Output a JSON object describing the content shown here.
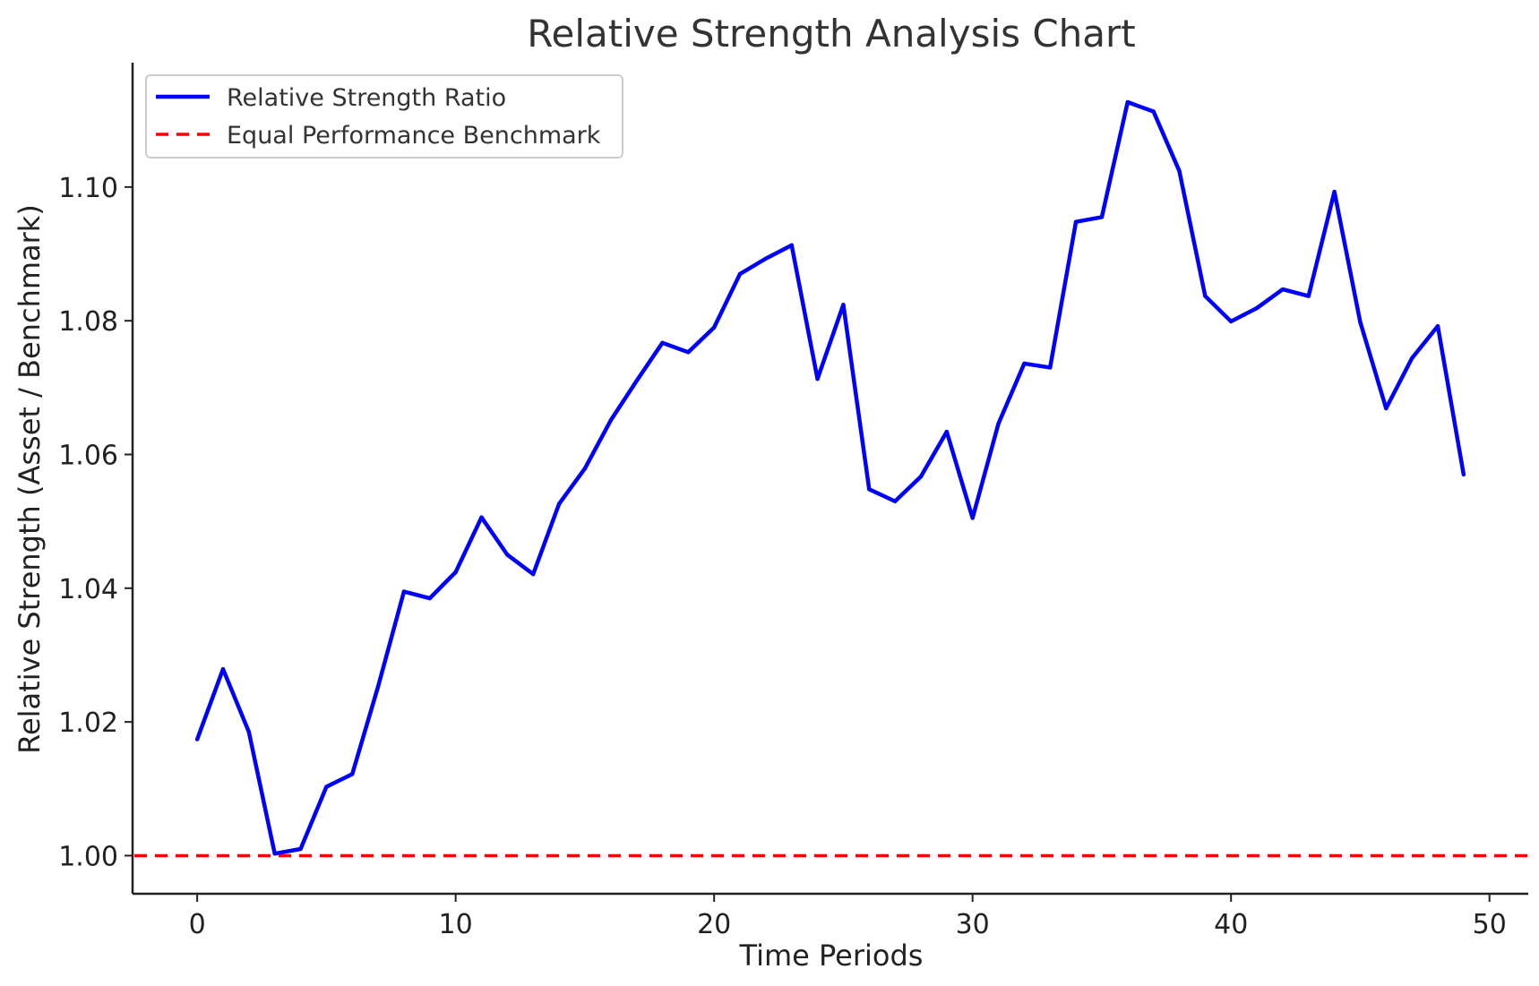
{
  "chart_data": {
    "type": "line",
    "title": "Relative Strength Analysis Chart",
    "xlabel": "Time Periods",
    "ylabel": "Relative Strength (Asset / Benchmark)",
    "xlim": [
      -2.5,
      51.5
    ],
    "ylim": [
      0.9943,
      1.1186
    ],
    "x_ticks": [
      0,
      10,
      20,
      30,
      40,
      50
    ],
    "x_tick_labels": [
      "0",
      "10",
      "20",
      "30",
      "40",
      "50"
    ],
    "y_ticks": [
      1.0,
      1.02,
      1.04,
      1.06,
      1.08,
      1.1
    ],
    "y_tick_labels": [
      "1.00",
      "1.02",
      "1.04",
      "1.06",
      "1.08",
      "1.10"
    ],
    "grid": false,
    "legend_position": "top-left",
    "series": [
      {
        "name": "Relative Strength Ratio",
        "color": "#0000ff",
        "style": "solid",
        "x": [
          0,
          1,
          2,
          3,
          4,
          5,
          6,
          7,
          8,
          9,
          10,
          11,
          12,
          13,
          14,
          15,
          16,
          17,
          18,
          19,
          20,
          21,
          22,
          23,
          24,
          25,
          26,
          27,
          28,
          29,
          30,
          31,
          32,
          33,
          34,
          35,
          36,
          37,
          38,
          39,
          40,
          41,
          42,
          43,
          44,
          45,
          46,
          47,
          48,
          49
        ],
        "values": [
          1.0174,
          1.0279,
          1.0185,
          1.0003,
          1.001,
          1.0103,
          1.0122,
          1.0253,
          1.0395,
          1.0385,
          1.0424,
          1.0506,
          1.045,
          1.0421,
          1.0526,
          1.0579,
          1.0651,
          1.071,
          1.0767,
          1.0753,
          1.079,
          1.087,
          1.0893,
          1.0913,
          1.0713,
          1.0824,
          1.0548,
          1.053,
          1.0567,
          1.0634,
          1.0505,
          1.0646,
          1.0736,
          1.073,
          1.0948,
          1.0955,
          1.1127,
          1.1113,
          1.1024,
          1.0837,
          1.0799,
          1.0819,
          1.0847,
          1.0837,
          1.0993,
          1.0798,
          1.0669,
          1.0744,
          1.0792,
          1.057
        ]
      },
      {
        "name": "Equal Performance Benchmark",
        "color": "#ff0000",
        "style": "dashed",
        "constant": 1.0
      }
    ]
  }
}
